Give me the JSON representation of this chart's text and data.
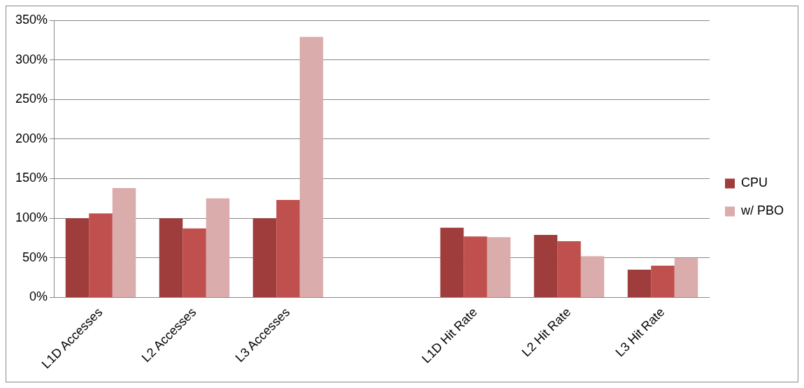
{
  "chart_data": {
    "type": "bar",
    "categories": [
      "L1D Accesses",
      "L2 Accesses",
      "L3 Accesses",
      null,
      "L1D Hit Rate",
      "L2 Hit Rate",
      "L3 Hit Rate"
    ],
    "series": [
      {
        "name": "CPU",
        "color": "#9e3d3c",
        "values": [
          100,
          100,
          100,
          null,
          88,
          79,
          35
        ]
      },
      {
        "color": "#c0504d",
        "values": [
          106,
          87,
          123,
          null,
          77,
          71,
          40
        ]
      },
      {
        "name": "w/ PBO",
        "color": "#dbacac",
        "values": [
          138,
          125,
          329,
          null,
          76,
          52,
          50
        ]
      }
    ],
    "ylim": [
      0,
      350
    ],
    "yticks": [
      {
        "value": 0,
        "label": "0%"
      },
      {
        "value": 50,
        "label": "50%"
      },
      {
        "value": 100,
        "label": "100%"
      },
      {
        "value": 150,
        "label": "150%"
      },
      {
        "value": 200,
        "label": "200%"
      },
      {
        "value": 250,
        "label": "250%"
      },
      {
        "value": 300,
        "label": "300%"
      },
      {
        "value": 350,
        "label": "350%"
      }
    ],
    "grid": "y",
    "legend": "right"
  }
}
